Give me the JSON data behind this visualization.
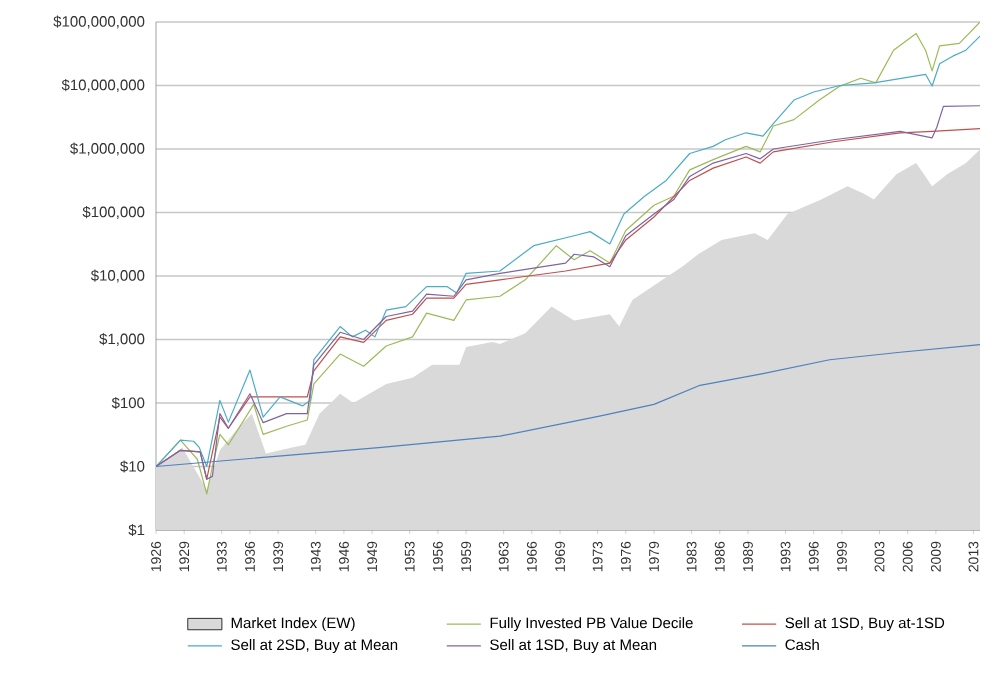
{
  "chart_data": {
    "type": "line",
    "log": "y",
    "grid": "y",
    "legend": "bottom",
    "marker": "none",
    "line_style": "solid",
    "xlim": [
      1926,
      2013.7
    ],
    "ylim": [
      1,
      100000000
    ],
    "xticks": [
      1926,
      1929,
      1933,
      1936,
      1939,
      1943,
      1946,
      1949,
      1953,
      1956,
      1959,
      1963,
      1966,
      1969,
      1973,
      1976,
      1979,
      1983,
      1986,
      1989,
      1993,
      1996,
      1999,
      2003,
      2006,
      2009,
      2013
    ],
    "yticks": [
      {
        "value": 1,
        "label": "$1"
      },
      {
        "value": 10,
        "label": "$10"
      },
      {
        "value": 100,
        "label": "$100"
      },
      {
        "value": 1000,
        "label": "$1,000"
      },
      {
        "value": 10000,
        "label": "$10,000"
      },
      {
        "value": 100000,
        "label": "$100,000"
      },
      {
        "value": 1000000,
        "label": "$1,000,000"
      },
      {
        "value": 10000000,
        "label": "$10,000,000"
      },
      {
        "value": 100000000,
        "label": "$100,000,000"
      }
    ],
    "series": [
      {
        "name": "Market Index (EW)",
        "type": "area",
        "color": "#d9d9d9",
        "x": [
          1926,
          1928.8,
          1931.4,
          1932.8,
          1934.9,
          1936.2,
          1937.7,
          1940.5,
          1941.9,
          1943.4,
          1945.6,
          1947,
          1950.5,
          1953.3,
          1955.4,
          1958.3,
          1959,
          1961.8,
          1962.6,
          1965.3,
          1968.1,
          1970.5,
          1974.3,
          1975.3,
          1976.7,
          1979.9,
          1982,
          1983.7,
          1986.2,
          1989.7,
          1991.1,
          1993.2,
          1996.8,
          1999.6,
          2001.3,
          2002.4,
          2004.8,
          2006.9,
          2008.6,
          2010.2,
          2012.2,
          2013.7
        ],
        "values": [
          10,
          20,
          4.3,
          18,
          43,
          68,
          16,
          20,
          22,
          68,
          140,
          100,
          200,
          250,
          400,
          400,
          760,
          910,
          850,
          1260,
          3300,
          2000,
          2500,
          1600,
          4200,
          8700,
          14000,
          22000,
          37000,
          47000,
          37000,
          95000,
          160000,
          260000,
          200000,
          160000,
          400000,
          600000,
          260000,
          400000,
          600000,
          980000
        ]
      },
      {
        "name": "Fully Invested PB Value Decile",
        "color": "#9bbb59",
        "x": [
          1926,
          1928.6,
          1930.4,
          1931.4,
          1932,
          1932.8,
          1933.7,
          1936.4,
          1937.4,
          1939.9,
          1942.1,
          1942.8,
          1945.6,
          1948.1,
          1950.5,
          1953.3,
          1954.8,
          1957.7,
          1959,
          1962.6,
          1965.3,
          1968.6,
          1970.5,
          1972.2,
          1974.3,
          1976,
          1979,
          1981.1,
          1982.8,
          1985.3,
          1988.8,
          1990.3,
          1991.7,
          1993.9,
          1996.6,
          1998.8,
          2001,
          2002.6,
          2004.5,
          2006.9,
          2007.9,
          2008.6,
          2009.4,
          2011.5,
          2013.7
        ],
        "values": [
          10,
          26,
          13,
          3.7,
          10,
          32,
          22,
          95,
          32,
          43,
          54,
          200,
          590,
          380,
          790,
          1100,
          2600,
          2000,
          4200,
          4800,
          8700,
          30000,
          18000,
          25000,
          16000,
          52000,
          130000,
          180000,
          470000,
          680000,
          1100000,
          900000,
          2300000,
          2900000,
          5900000,
          9800000,
          13000000,
          11000000,
          36000000,
          66000000,
          36000000,
          17000000,
          42000000,
          46000000,
          100000000
        ]
      },
      {
        "name": "Sell at 1SD, Buy at-1SD",
        "color": "#c0504d",
        "x": [
          1926,
          1928.6,
          1930.7,
          1931.4,
          1932.8,
          1933.7,
          1936,
          1939.9,
          1942.1,
          1942.8,
          1945.6,
          1948.1,
          1950.5,
          1953.3,
          1954.8,
          1957.7,
          1959,
          1962.6,
          1969.6,
          1974.3,
          1976,
          1979,
          1982.8,
          1985.3,
          1988.8,
          1990.3,
          1991.7,
          1998.1,
          2005.2,
          2008.6,
          2013.7
        ],
        "values": [
          10,
          18,
          17,
          6.3,
          60,
          40,
          125,
          125,
          125,
          320,
          1100,
          900,
          2000,
          2500,
          4500,
          4500,
          7400,
          8700,
          12000,
          16000,
          37000,
          85000,
          320000,
          500000,
          750000,
          600000,
          900000,
          1300000,
          1800000,
          1900000,
          2100000
        ]
      },
      {
        "name": "Sell at 2SD, Buy at Mean",
        "color": "#4bacc6",
        "x": [
          1926,
          1928.6,
          1930,
          1930.6,
          1931.4,
          1932.8,
          1933.7,
          1936,
          1937.4,
          1939.2,
          1941.6,
          1942.4,
          1942.8,
          1945.6,
          1946.9,
          1948.3,
          1949.3,
          1950.5,
          1952.6,
          1954.8,
          1957,
          1958,
          1959,
          1962.6,
          1966.2,
          1970.5,
          1972.2,
          1974.3,
          1975.8,
          1978,
          1980.3,
          1982.8,
          1985.3,
          1986.6,
          1988.8,
          1990.6,
          1991.7,
          1993.9,
          1996,
          1998.8,
          2002.4,
          2007.9,
          2008.6,
          2009.4,
          2010.8,
          2012.2,
          2013.7
        ],
        "values": [
          10,
          26,
          25,
          20,
          10,
          110,
          50,
          330,
          60,
          125,
          90,
          110,
          480,
          1600,
          1100,
          1400,
          1100,
          2900,
          3300,
          6800,
          6800,
          5400,
          11000,
          12000,
          30000,
          43000,
          50000,
          32000,
          95000,
          180000,
          320000,
          850000,
          1100000,
          1400000,
          1800000,
          1600000,
          2500000,
          5900000,
          7900000,
          10000000,
          11000000,
          15000000,
          9800000,
          22000000,
          29000000,
          36000000,
          60000000
        ]
      },
      {
        "name": "Sell at 1SD, Buy at Mean",
        "color": "#8064a2",
        "x": [
          1926,
          1928.6,
          1930.7,
          1931.4,
          1932,
          1932.8,
          1933.7,
          1936,
          1937.4,
          1939.9,
          1942.1,
          1942.8,
          1945.6,
          1948.1,
          1950.5,
          1953.3,
          1954.8,
          1957.7,
          1959,
          1962.6,
          1969.6,
          1970.5,
          1972.6,
          1974.3,
          1976,
          1979,
          1981.1,
          1982.8,
          1985.3,
          1988.8,
          1990.3,
          1991.7,
          1998.1,
          2005.2,
          2008.6,
          2009.1,
          2009.8,
          2013.7
        ],
        "values": [
          10,
          18,
          17,
          6.3,
          7,
          68,
          40,
          140,
          49,
          68,
          68,
          400,
          1300,
          1000,
          2300,
          2800,
          5200,
          4800,
          8700,
          11000,
          16000,
          22000,
          20000,
          14000,
          43000,
          95000,
          160000,
          370000,
          600000,
          850000,
          700000,
          1000000,
          1400000,
          1900000,
          1500000,
          2200000,
          4700000,
          4800000
        ]
      },
      {
        "name": "Cash",
        "color": "#4f81bd",
        "x": [
          1926,
          1940,
          1950,
          1962.6,
          1973.2,
          1979,
          1983.9,
          1990.6,
          1997.7,
          2005.2,
          2013.7
        ],
        "values": [
          10,
          15,
          20,
          30,
          62,
          95,
          190,
          290,
          480,
          630,
          830
        ]
      }
    ]
  }
}
